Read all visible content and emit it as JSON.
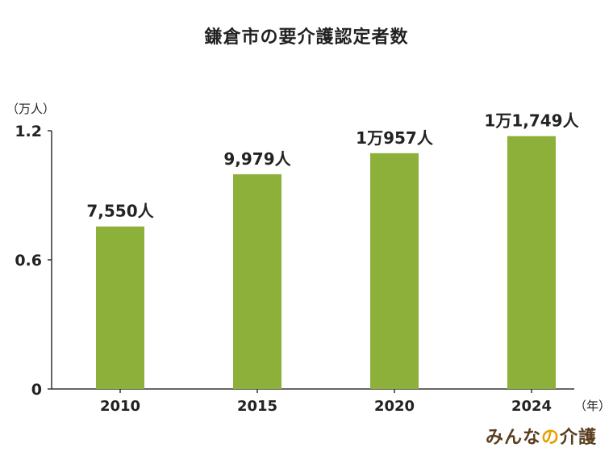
{
  "title": "鎌倉市の要介護認定者数",
  "brand": {
    "part1": "みんな",
    "part2": "の",
    "part3": "介護"
  },
  "chart_data": {
    "type": "bar",
    "title": "鎌倉市の要介護認定者数",
    "y_unit_label": "（万人）",
    "x_unit_label": "（年）",
    "categories": [
      "2010",
      "2015",
      "2020",
      "2024"
    ],
    "values": [
      7550,
      9979,
      10957,
      11749
    ],
    "value_labels": [
      "7,550人",
      "9,979人",
      "1万957人",
      "1万1,749人"
    ],
    "y_ticks": [
      {
        "value": 0,
        "label": "0"
      },
      {
        "value": 6000,
        "label": "0.6"
      },
      {
        "value": 12000,
        "label": "1.2"
      }
    ],
    "ylim": [
      0,
      12000
    ],
    "bar_color": "#8db03a",
    "grid": false,
    "legend": "none"
  }
}
